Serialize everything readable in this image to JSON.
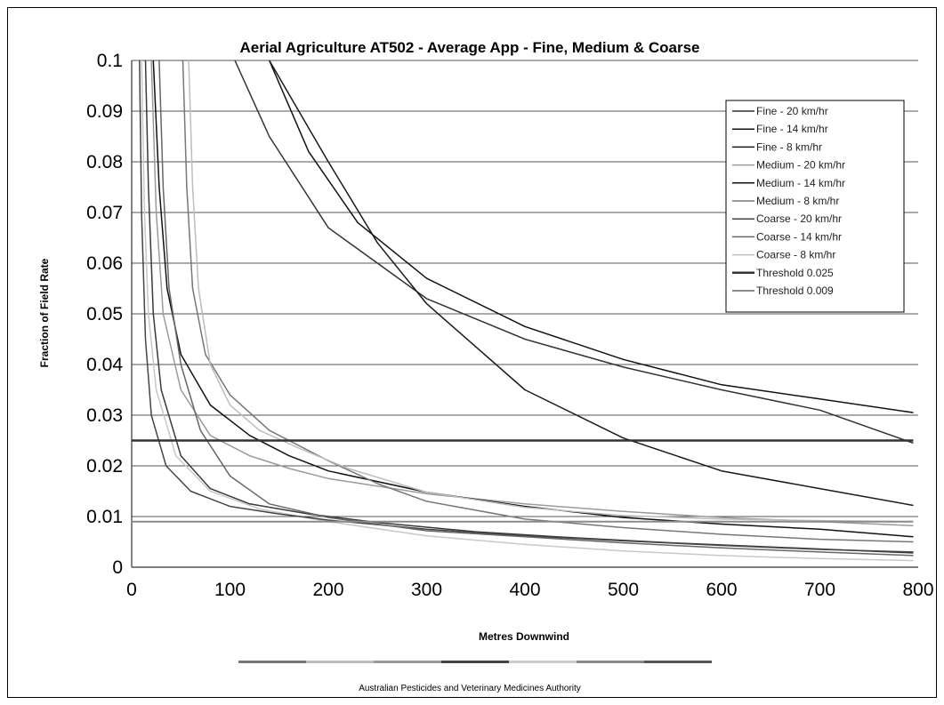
{
  "chart_data": {
    "type": "line",
    "title": "Aerial Agriculture AT502 - Average App - Fine, Medium & Coarse",
    "xlabel": "Metres Downwind",
    "ylabel": "Fraction of Field Rate",
    "xlim": [
      0,
      800
    ],
    "ylim": [
      0,
      0.1
    ],
    "x_ticks": [
      "0",
      "100",
      "200",
      "300",
      "400",
      "500",
      "600",
      "700",
      "800"
    ],
    "y_ticks": [
      "0",
      "0.01",
      "0.02",
      "0.03",
      "0.04",
      "0.05",
      "0.06",
      "0.07",
      "0.08",
      "0.09",
      "0.1"
    ],
    "grid": "horizontal",
    "legend_position": "top-right",
    "series": [
      {
        "name": "Fine - 20 km/hr",
        "color": "#333333",
        "width": 1.5,
        "points": [
          [
            105,
            0.1
          ],
          [
            140,
            0.085
          ],
          [
            200,
            0.067
          ],
          [
            300,
            0.053
          ],
          [
            400,
            0.045
          ],
          [
            500,
            0.0395
          ],
          [
            600,
            0.035
          ],
          [
            700,
            0.031
          ],
          [
            795,
            0.0245
          ]
        ]
      },
      {
        "name": "Fine - 14 km/hr",
        "color": "#111111",
        "width": 1.5,
        "points": [
          [
            140,
            0.1
          ],
          [
            180,
            0.082
          ],
          [
            230,
            0.068
          ],
          [
            300,
            0.057
          ],
          [
            400,
            0.0475
          ],
          [
            500,
            0.041
          ],
          [
            600,
            0.036
          ],
          [
            700,
            0.0332
          ],
          [
            795,
            0.0305
          ]
        ]
      },
      {
        "name": "Fine - 8 km/hr",
        "color": "#1a1a1a",
        "width": 1.5,
        "points": [
          [
            140,
            0.1
          ],
          [
            200,
            0.08
          ],
          [
            250,
            0.064
          ],
          [
            300,
            0.052
          ],
          [
            400,
            0.035
          ],
          [
            500,
            0.0255
          ],
          [
            600,
            0.019
          ],
          [
            700,
            0.0155
          ],
          [
            795,
            0.0122
          ]
        ]
      },
      {
        "name": "Medium - 20 km/hr",
        "color": "#9a9a9a",
        "width": 1.5,
        "points": [
          [
            20,
            0.1
          ],
          [
            25,
            0.07
          ],
          [
            32,
            0.05
          ],
          [
            50,
            0.035
          ],
          [
            80,
            0.026
          ],
          [
            120,
            0.022
          ],
          [
            160,
            0.0195
          ],
          [
            200,
            0.0175
          ],
          [
            300,
            0.0145
          ],
          [
            400,
            0.0125
          ],
          [
            500,
            0.011
          ],
          [
            600,
            0.0098
          ],
          [
            700,
            0.009
          ],
          [
            795,
            0.0082
          ]
        ]
      },
      {
        "name": "Medium - 14 km/hr",
        "color": "#111111",
        "width": 1.5,
        "points": [
          [
            22,
            0.1
          ],
          [
            28,
            0.075
          ],
          [
            36,
            0.055
          ],
          [
            50,
            0.042
          ],
          [
            80,
            0.032
          ],
          [
            120,
            0.026
          ],
          [
            160,
            0.022
          ],
          [
            200,
            0.019
          ],
          [
            300,
            0.0148
          ],
          [
            400,
            0.012
          ],
          [
            500,
            0.0098
          ],
          [
            600,
            0.0085
          ],
          [
            700,
            0.0075
          ],
          [
            795,
            0.006
          ]
        ]
      },
      {
        "name": "Medium - 8 km/hr",
        "color": "#777777",
        "width": 1.5,
        "points": [
          [
            52,
            0.1
          ],
          [
            56,
            0.075
          ],
          [
            62,
            0.055
          ],
          [
            75,
            0.042
          ],
          [
            100,
            0.034
          ],
          [
            140,
            0.027
          ],
          [
            200,
            0.021
          ],
          [
            250,
            0.0165
          ],
          [
            300,
            0.013
          ],
          [
            400,
            0.0095
          ],
          [
            500,
            0.0078
          ],
          [
            600,
            0.0065
          ],
          [
            700,
            0.0055
          ],
          [
            795,
            0.005
          ]
        ]
      },
      {
        "name": "Coarse - 20 km/hr",
        "color": "#444444",
        "width": 1.5,
        "points": [
          [
            8,
            0.1
          ],
          [
            10,
            0.07
          ],
          [
            14,
            0.045
          ],
          [
            20,
            0.03
          ],
          [
            35,
            0.02
          ],
          [
            60,
            0.015
          ],
          [
            100,
            0.012
          ],
          [
            150,
            0.0105
          ],
          [
            200,
            0.0093
          ],
          [
            300,
            0.0075
          ],
          [
            400,
            0.0062
          ],
          [
            500,
            0.0052
          ],
          [
            600,
            0.0043
          ],
          [
            700,
            0.0035
          ],
          [
            795,
            0.003
          ]
        ]
      },
      {
        "name": "Coarse - 14 km/hr",
        "color": "#666666",
        "width": 1.5,
        "points": [
          [
            28,
            0.1
          ],
          [
            32,
            0.075
          ],
          [
            38,
            0.055
          ],
          [
            50,
            0.04
          ],
          [
            70,
            0.027
          ],
          [
            100,
            0.018
          ],
          [
            140,
            0.0125
          ],
          [
            200,
            0.0098
          ],
          [
            300,
            0.0072
          ],
          [
            400,
            0.006
          ],
          [
            500,
            0.0048
          ],
          [
            600,
            0.0038
          ],
          [
            700,
            0.003
          ],
          [
            795,
            0.0023
          ]
        ]
      },
      {
        "name": "Coarse - 8 km/hr",
        "color": "#bdbdbd",
        "width": 1.5,
        "points": [
          [
            58,
            0.1
          ],
          [
            62,
            0.075
          ],
          [
            68,
            0.055
          ],
          [
            80,
            0.04
          ],
          [
            100,
            0.032
          ],
          [
            130,
            0.027
          ],
          [
            170,
            0.0235
          ],
          [
            220,
            0.0195
          ],
          [
            300,
            0.0148
          ],
          [
            400,
            0.0118
          ],
          [
            500,
            0.0102
          ],
          [
            600,
            0.0095
          ],
          [
            700,
            0.0092
          ],
          [
            795,
            0.009
          ]
        ]
      },
      {
        "name": "Threshold  0.025",
        "color": "#333333",
        "width": 2.5,
        "points": [
          [
            0,
            0.025
          ],
          [
            795,
            0.025
          ]
        ]
      },
      {
        "name": "Threshold 0.009",
        "color": "#8a8a8a",
        "width": 2,
        "points": [
          [
            0,
            0.009
          ],
          [
            795,
            0.009
          ]
        ]
      }
    ],
    "extra_curves": [
      {
        "color": "#c8c8c8",
        "width": 1.5,
        "points": [
          [
            10,
            0.1
          ],
          [
            13,
            0.07
          ],
          [
            17,
            0.05
          ],
          [
            25,
            0.035
          ],
          [
            45,
            0.022
          ],
          [
            80,
            0.015
          ],
          [
            130,
            0.0115
          ],
          [
            200,
            0.009
          ],
          [
            300,
            0.0062
          ],
          [
            400,
            0.0045
          ],
          [
            500,
            0.0032
          ],
          [
            600,
            0.0023
          ],
          [
            700,
            0.0017
          ],
          [
            795,
            0.0013
          ]
        ]
      },
      {
        "color": "#3a3a3a",
        "width": 1.5,
        "points": [
          [
            14,
            0.1
          ],
          [
            17,
            0.075
          ],
          [
            22,
            0.05
          ],
          [
            30,
            0.035
          ],
          [
            50,
            0.022
          ],
          [
            80,
            0.0155
          ],
          [
            120,
            0.0125
          ],
          [
            180,
            0.0105
          ],
          [
            250,
            0.0088
          ],
          [
            350,
            0.007
          ],
          [
            450,
            0.0058
          ],
          [
            550,
            0.0048
          ],
          [
            650,
            0.004
          ],
          [
            795,
            0.0028
          ]
        ]
      }
    ]
  },
  "footer": {
    "source": "Australian Pesticides and Veterinary Medicines Authority",
    "strip_colors": [
      "#777777",
      "#bbbbbb",
      "#999999",
      "#444444",
      "#cccccc",
      "#888888",
      "#555555"
    ]
  }
}
